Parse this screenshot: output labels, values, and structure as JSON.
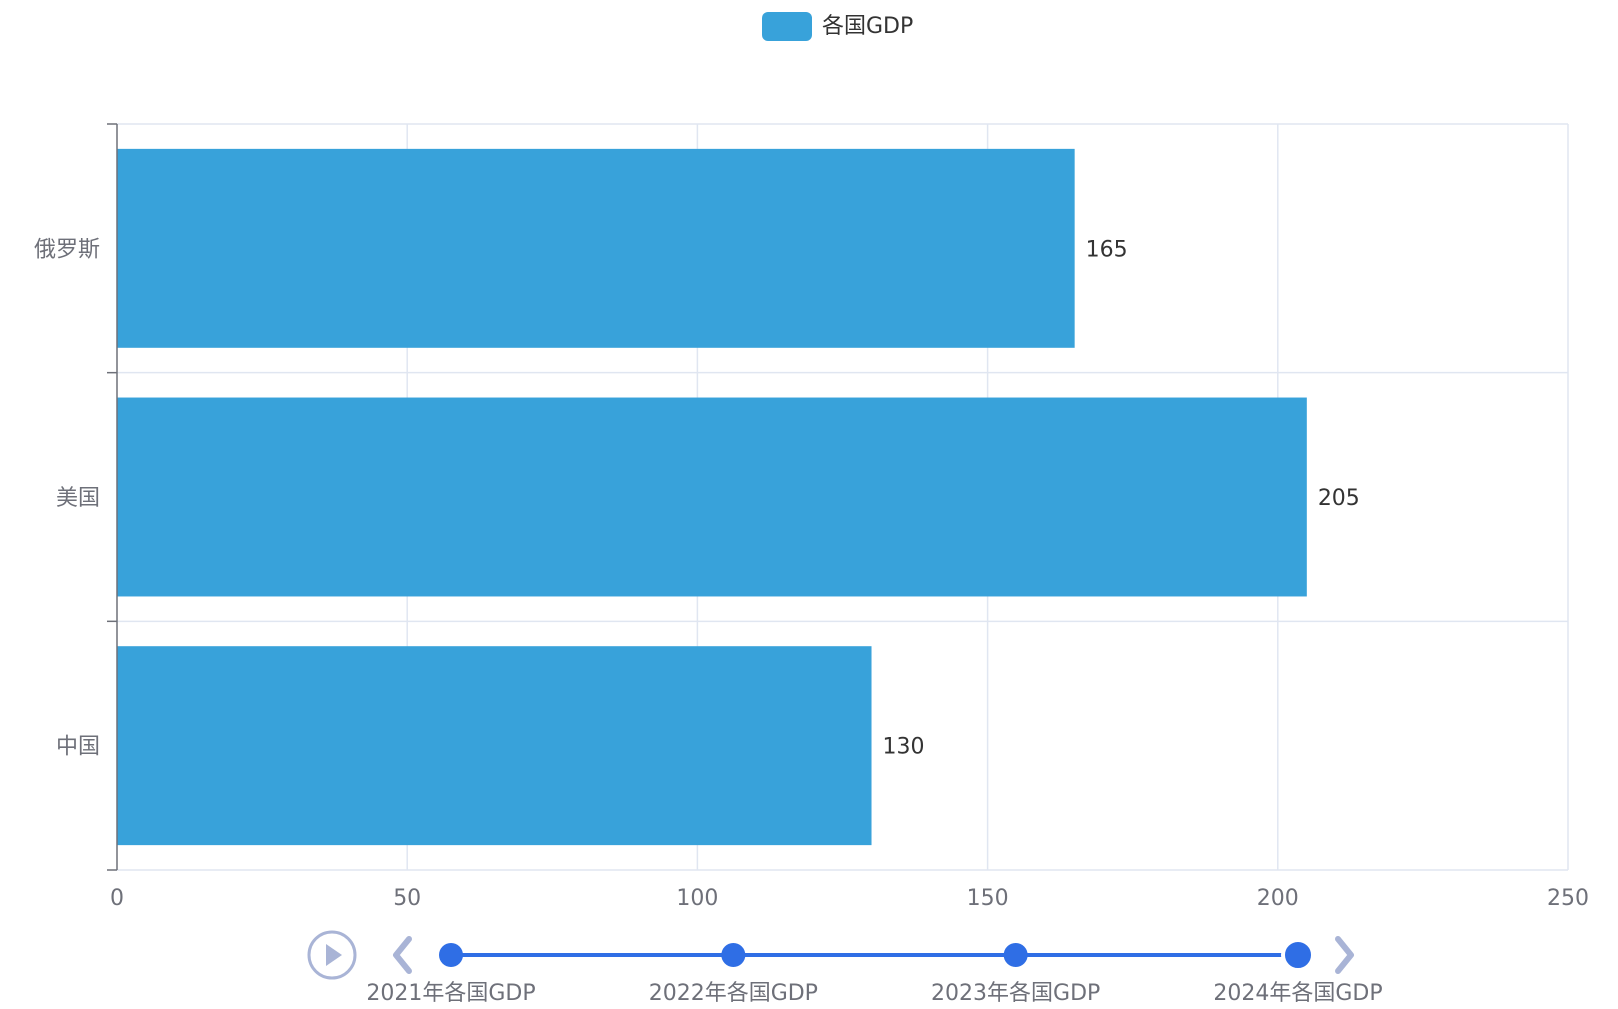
{
  "legend": {
    "label": "各国GDP",
    "color": "#38a2da"
  },
  "chart_data": {
    "type": "bar",
    "orientation": "horizontal",
    "categories": [
      "中国",
      "美国",
      "俄罗斯"
    ],
    "series": [
      {
        "name": "各国GDP",
        "values": [
          130,
          205,
          165
        ],
        "color": "#38a2da"
      }
    ],
    "xlim": [
      0,
      250
    ],
    "x_ticks": [
      0,
      50,
      100,
      150,
      200,
      250
    ],
    "grid": true,
    "data_labels": true,
    "legend_position": "top-center"
  },
  "timeline": {
    "play_icon": "play-icon",
    "prev_icon": "chevron-left-icon",
    "next_icon": "chevron-right-icon",
    "items": [
      "2021年各国GDP",
      "2022年各国GDP",
      "2023年各国GDP",
      "2024年各国GDP"
    ],
    "current_index": 3,
    "line_color": "#2f6ee5",
    "dot_color": "#2f6ee5",
    "control_color": "#a9b4d6"
  },
  "colors": {
    "grid": "#e0e6f1",
    "axis": "#6e7079",
    "tick_label": "#6e7079",
    "data_label": "#333333"
  }
}
